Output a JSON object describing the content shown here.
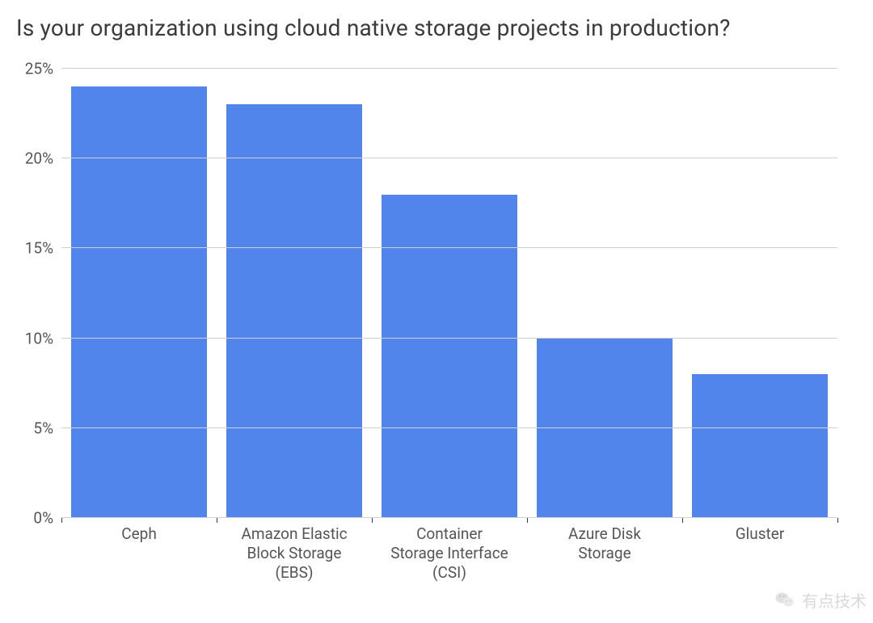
{
  "chart": {
    "type": "bar",
    "title": "Is your organization using cloud native storage projects in production?",
    "title_fontsize": 28,
    "title_color": "#3b3b3b",
    "background_color": "#ffffff",
    "grid_color": "#cfcfcf",
    "axis_color": "#3a3a3a",
    "label_color": "#555555",
    "label_fontsize": 19,
    "ylim": [
      0,
      25
    ],
    "ytick_step": 5,
    "ytick_suffix": "%",
    "y_ticks": [
      0,
      5,
      10,
      15,
      20,
      25
    ],
    "bar_width": 0.88,
    "bar_color": "#5185ec",
    "categories": [
      "Ceph",
      "Amazon Elastic\nBlock Storage\n(EBS)",
      "Container\nStorage Interface\n(CSI)",
      "Azure Disk\nStorage",
      "Gluster"
    ],
    "values": [
      24,
      23,
      18,
      10,
      8
    ],
    "bar_colors": [
      "#5185ec",
      "#5185ec",
      "#5185ec",
      "#5185ec",
      "#5185ec"
    ]
  },
  "watermark": {
    "text": "有点技术",
    "icon_name": "wechat-icon",
    "color": "#b9b9b9"
  }
}
